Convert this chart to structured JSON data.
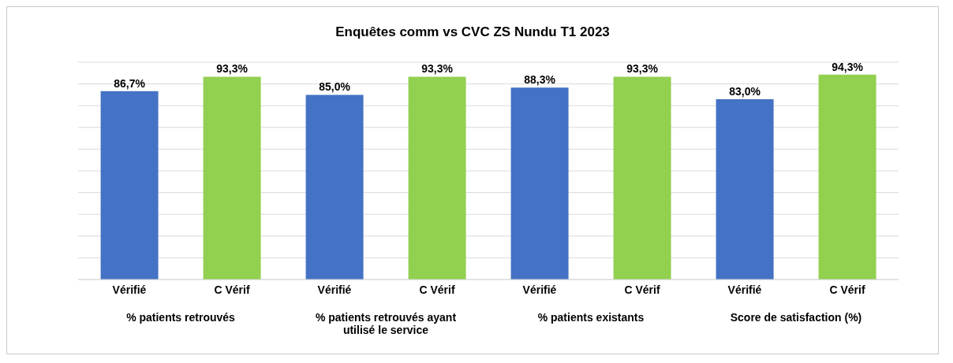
{
  "chart_data": {
    "type": "bar",
    "title": "Enquêtes comm vs CVC ZS Nundu T1 2023",
    "categories": [
      "Vérifié",
      "C Vérif",
      "Vérifié",
      "C Vérif",
      "Vérifié",
      "C Vérif",
      "Vérifié",
      "C Vérif"
    ],
    "values": [
      86.7,
      93.3,
      85.0,
      93.3,
      88.3,
      93.3,
      83.0,
      94.3
    ],
    "value_labels": [
      "86,7%",
      "93,3%",
      "85,0%",
      "93,3%",
      "88,3%",
      "93,3%",
      "83,0%",
      "94,3%"
    ],
    "colors": [
      "#4472c4",
      "#92d050",
      "#4472c4",
      "#92d050",
      "#4472c4",
      "#92d050",
      "#4472c4",
      "#92d050"
    ],
    "annotations": [
      "% patients retrouvés",
      "% patients retrouvés ayant utilisé le service",
      "% patients  existants",
      "Score de satisfaction (%)"
    ],
    "ylim": [
      0,
      100
    ],
    "tick_labels": "x",
    "grid": "y"
  }
}
